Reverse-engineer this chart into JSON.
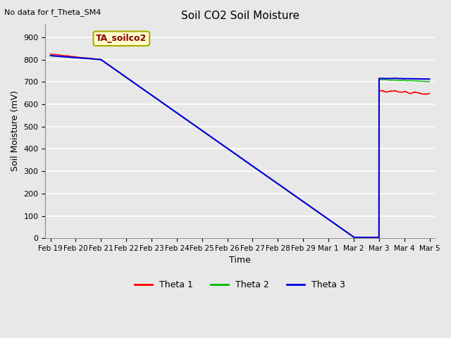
{
  "title": "Soil CO2 Soil Moisture",
  "no_data_label": "No data for f_Theta_SM4",
  "xlabel": "Time",
  "ylabel": "Soil Moisture (mV)",
  "ylim": [
    0,
    960
  ],
  "yticks": [
    0,
    100,
    200,
    300,
    400,
    500,
    600,
    700,
    800,
    900
  ],
  "bg_color": "#e8e8e8",
  "legend_box_label": "TA_soilco2",
  "legend_box_color": "#ffffcc",
  "legend_box_edge": "#aaaa00",
  "theta1_color": "#ff0000",
  "theta2_color": "#00bb00",
  "theta3_color": "#0000dd",
  "x_date_labels": [
    "Feb 19",
    "Feb 20",
    "Feb 21",
    "Feb 22",
    "Feb 23",
    "Feb 24",
    "Feb 25",
    "Feb 26",
    "Feb 27",
    "Feb 28",
    "Feb 29",
    "Mar 1",
    "Mar 2",
    "Mar 3",
    "Mar 4",
    "Mar 5"
  ],
  "x_positions": [
    0,
    1,
    2,
    3,
    4,
    5,
    6,
    7,
    8,
    9,
    10,
    11,
    12,
    13,
    14,
    15
  ],
  "xlim": [
    -0.2,
    15.2
  ]
}
